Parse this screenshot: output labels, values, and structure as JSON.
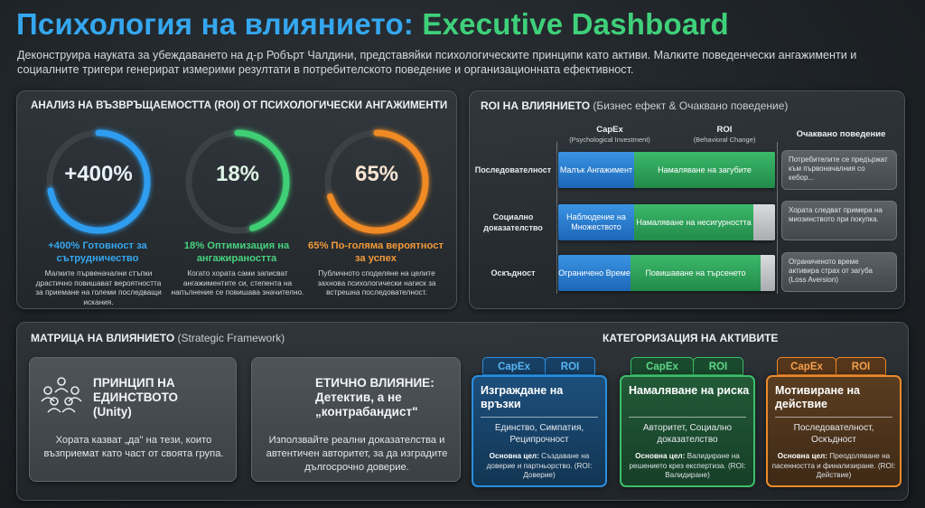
{
  "header": {
    "title_part1": "Психология на влиянието:",
    "title_part2": "Executive Dashboard",
    "subtitle": "Деконструира науката за убеждаването на д-р Робърт Чалдини, представяйки психологическите принципи като активи. Малките поведенчески ангажименти и социалните тригери генерират измерими резултати в потребителското поведение и организационната ефективност."
  },
  "roi_panel": {
    "title": "АНАЛИЗ НА ВЪЗВРЪЩАЕМОСТТА (ROI) ОТ ПСИХОЛОГИЧЕСКИ АНГАЖИМЕНТИ",
    "gauges": [
      {
        "value": "+400%",
        "fill": 0.72,
        "color": "#2e9df0",
        "caption": "+400% Готовност за сътрудничество",
        "desc": "Малките първеначални стъпки драстично повишават вероятността за приемане на големи последващи искания."
      },
      {
        "value": "18%",
        "fill": 0.45,
        "color": "#3fcf75",
        "caption": "18% Оптимизация на ангажираността",
        "desc": "Когато хората сами записват ангажиментите си, степента на напълнение се повишава значително."
      },
      {
        "value": "65%",
        "fill": 0.7,
        "color": "#f08a24",
        "caption": "65% По-голяма вероятност за успех",
        "desc": "Публичното споделяне на целите захнова психологически нагиск за встрешна последователност."
      }
    ]
  },
  "influence_panel": {
    "title": "ROI НА ВЛИЯНИЕТО",
    "title_light": "(Бизнес ефект & Очаквано поведение)",
    "col_capex": "CapEx",
    "col_capex_sub": "(Psychological Investment)",
    "col_roi": "ROI",
    "col_roi_sub": "(Behavioral Change)",
    "col_behavior": "Очаквано поведение",
    "rows": [
      {
        "label": "Последователност",
        "capex_text": "Малък Ангажимент",
        "roi_text": "Намаляване на загубите",
        "capex_share": 0.35,
        "roi_share": 0.65,
        "behavior": "Потребителите се предържат към първоначалния со кебор..."
      },
      {
        "label": "Социално доказателство",
        "capex_text": "Наблюдение на Множеството",
        "roi_text": "Намаляване на несигурността",
        "capex_share": 0.35,
        "roi_share": 0.55,
        "behavior": "Хората следват примера на миозинството при покупка."
      },
      {
        "label": "Оскъдност",
        "capex_text": "Ограничено Време",
        "roi_text": "Повишаване на търсенето",
        "capex_share": 0.33,
        "roi_share": 0.6,
        "behavior": "Ограниченото време активира страх от загуба (Loss Aversion)"
      }
    ]
  },
  "matrix_panel": {
    "title": "МАТРИЦА НА ВЛИЯНИЕТО",
    "title_light": "(Strategic Framework)",
    "card1": {
      "icon": "group-icon",
      "title": "ПРИНЦИП НА ЕДИНСТВОТО (Unity)",
      "desc": "Хората казват „да\" на тези, които възприемат като част от своята група."
    },
    "card2": {
      "title": "ЕТИЧНО ВЛИЯНИЕ: Детектив, а не „контрабандист\"",
      "desc": "Използвайте реални доказателства и автентичен авторитет, за да изградите дългосрочно доверие."
    },
    "categories_title": "КАТЕГОРИЗАЦИЯ НА АКТИВИТЕ",
    "tab_capex": "CapEx",
    "tab_roi": "ROI",
    "assets": [
      {
        "color": "#2a8fe0",
        "title": "Изграждане на връзки",
        "items": "Единство, Симпатия, Реципрочност",
        "goal_label": "Основна цел:",
        "goal": "Създаване на доверие и партньорство. (ROI: Доверие)"
      },
      {
        "color": "#3bbf6a",
        "title": "Намаляване на риска",
        "items": "Авторитет, Социално доказателство",
        "goal_label": "Основна цел:",
        "goal": "Валидиране на решението крез експертиза. (ROI: Валидиране)"
      },
      {
        "color": "#ec8a2b",
        "title": "Мотивиране на действие",
        "items": "Последователност, Оскъдност",
        "goal_label": "Основна цел:",
        "goal": "Преодоляване на пасенността и финализиране. (ROI: Действие)"
      }
    ]
  }
}
